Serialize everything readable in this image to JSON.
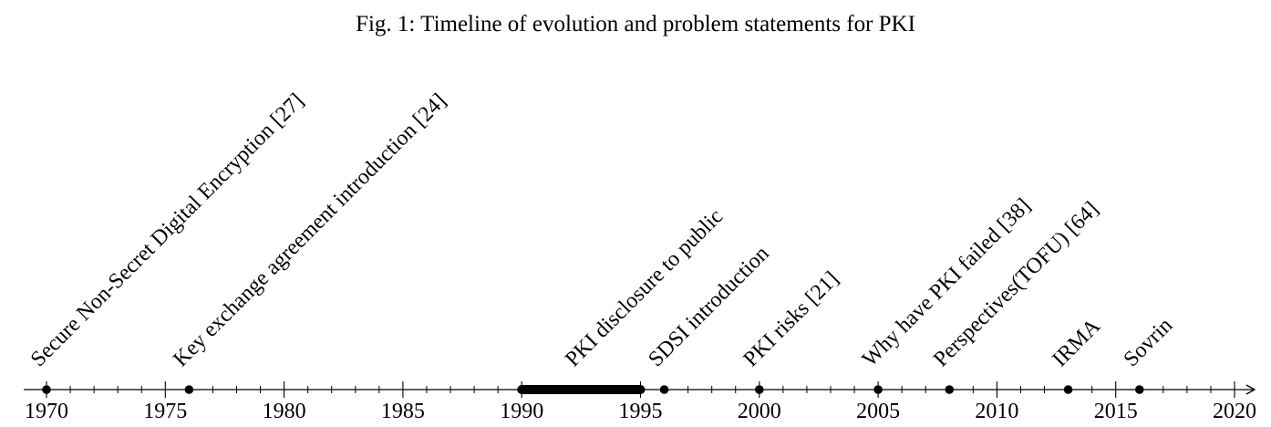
{
  "caption": "Fig. 1: Timeline of evolution and problem statements for PKI",
  "chart_data": {
    "type": "timeline",
    "title": "Fig. 1: Timeline of evolution and problem statements for PKI",
    "xlim": [
      1970,
      2020
    ],
    "major_tick_step": 5,
    "minor_tick_step": 1,
    "tick_labels": [
      "1970",
      "1975",
      "1980",
      "1985",
      "1990",
      "1995",
      "2000",
      "2005",
      "2010",
      "2015",
      "2020"
    ],
    "events": [
      {
        "year": 1970,
        "label": "Secure Non-Secret Digital Encryption [27]"
      },
      {
        "year": 1976,
        "label": "Key exchange agreement introduction [24]"
      },
      {
        "start": 1990,
        "end": 1995,
        "label": "PKI disclosure to public"
      },
      {
        "year": 1996,
        "label": "SDSI introduction"
      },
      {
        "year": 2000,
        "label": "PKI risks [21]"
      },
      {
        "year": 2005,
        "label": "Why have PKI failed [38]"
      },
      {
        "year": 2008,
        "label": "Perspectives(TOFU) [64]"
      },
      {
        "year": 2013,
        "label": "IRMA"
      },
      {
        "year": 2016,
        "label": "Sovrin"
      }
    ]
  }
}
